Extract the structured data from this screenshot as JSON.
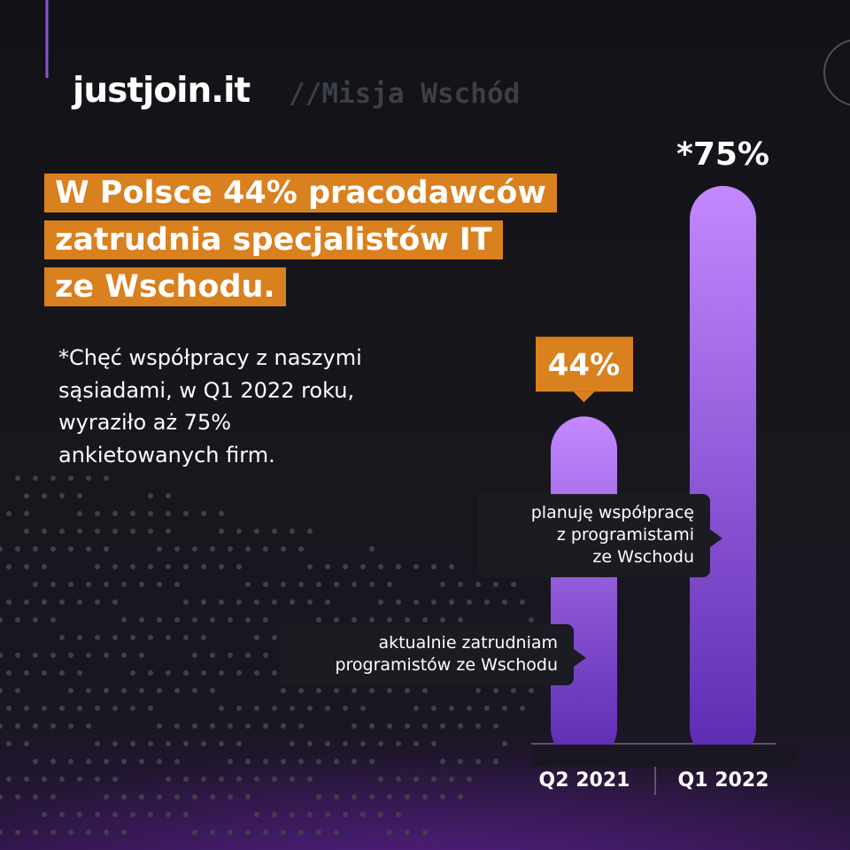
{
  "brand": {
    "logo": "justjoin.it",
    "tag": "//Misja Wschód"
  },
  "headline": [
    "W Polsce 44% pracodawców",
    "zatrudnia specjalistów IT",
    "ze Wschodu."
  ],
  "note": [
    "*Chęć współpracy z naszymi",
    "sąsiadami, w Q1 2022 roku,",
    "wyraziło aż 75%",
    "ankietowanych firm."
  ],
  "callouts": {
    "planning": [
      "planuję współpracę",
      "z programistami",
      "ze Wschodu"
    ],
    "current": [
      "aktualnie zatrudniam",
      "programistów ze Wschodu"
    ]
  },
  "colors": {
    "accent_orange": "#d9801f",
    "bar_purple_top": "#c488ff",
    "bar_purple_bottom": "#5a2ab0",
    "background": "#16161c",
    "brand_tag": "#3a3f48"
  },
  "chart_data": {
    "type": "bar",
    "categories": [
      "Q2 2021",
      "Q1 2022"
    ],
    "values": [
      44,
      75
    ],
    "data_labels": [
      "44%",
      "*75%"
    ],
    "ylim": [
      0,
      100
    ],
    "value_unit": "%",
    "grid": false,
    "axis_line": true
  }
}
